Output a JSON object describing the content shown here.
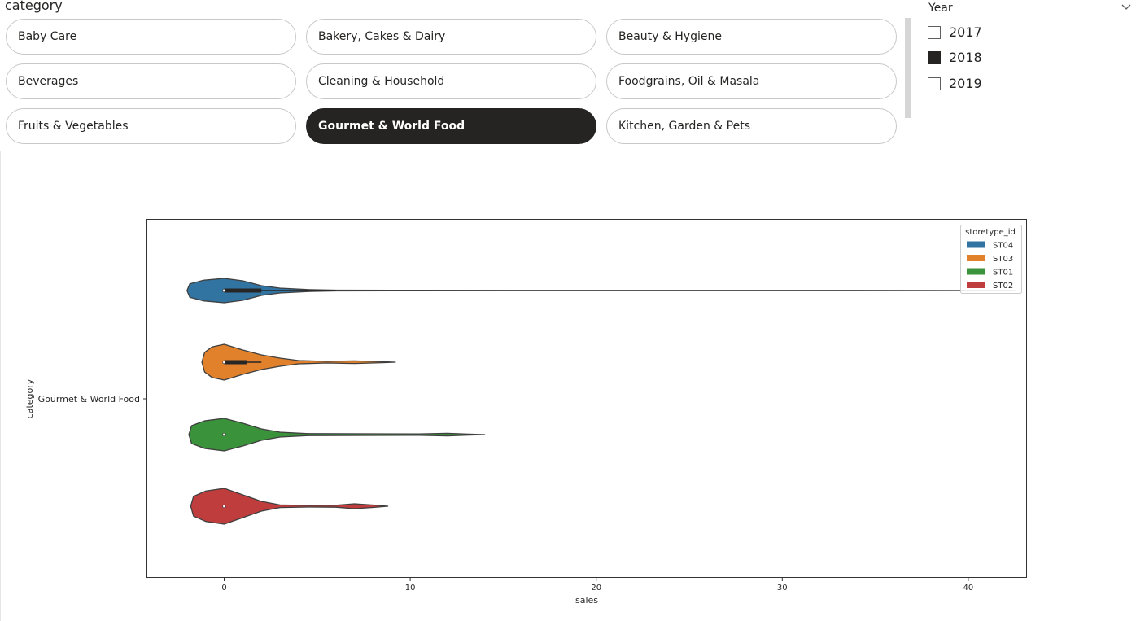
{
  "slicer_category": {
    "title": "category",
    "items": [
      {
        "label": "Baby Care",
        "selected": false
      },
      {
        "label": "Bakery, Cakes & Dairy",
        "selected": false
      },
      {
        "label": "Beauty & Hygiene",
        "selected": false
      },
      {
        "label": "Beverages",
        "selected": false
      },
      {
        "label": "Cleaning & Household",
        "selected": false
      },
      {
        "label": "Foodgrains, Oil & Masala",
        "selected": false
      },
      {
        "label": "Fruits & Vegetables",
        "selected": false
      },
      {
        "label": "Gourmet & World Food",
        "selected": true
      },
      {
        "label": "Kitchen, Garden & Pets",
        "selected": false
      }
    ]
  },
  "slicer_year": {
    "title": "Year",
    "dropdown_icon": "chevron-down-icon",
    "items": [
      {
        "label": "2017",
        "checked": false
      },
      {
        "label": "2018",
        "checked": true
      },
      {
        "label": "2019",
        "checked": false
      }
    ]
  },
  "chart_data": {
    "type": "violin",
    "orientation": "horizontal",
    "categories": [
      "Gourmet & World Food"
    ],
    "xlabel": "sales",
    "ylabel": "category",
    "xlim": [
      -4.2,
      43
    ],
    "xticks": [
      0,
      10,
      20,
      30,
      40
    ],
    "legend": {
      "title": "storetype_id",
      "placement": "top-right"
    },
    "series": [
      {
        "name": "ST04",
        "color": "#3274a1",
        "min": -2,
        "max": 42.5,
        "median": 0,
        "q1": 0,
        "q3": 2,
        "whisker_high": 6
      },
      {
        "name": "ST03",
        "color": "#e1812c",
        "min": -1.2,
        "max": 9.2,
        "median": 0,
        "q1": 0,
        "q3": 1.2,
        "whisker_high": 2
      },
      {
        "name": "ST01",
        "color": "#3a923a",
        "min": -1.9,
        "max": 14,
        "median": 0,
        "q1": 0,
        "q3": 0,
        "whisker_high": 0
      },
      {
        "name": "ST02",
        "color": "#c03d3e",
        "min": -1.8,
        "max": 8.8,
        "median": 0,
        "q1": 0,
        "q3": 0,
        "whisker_high": 0
      }
    ]
  }
}
